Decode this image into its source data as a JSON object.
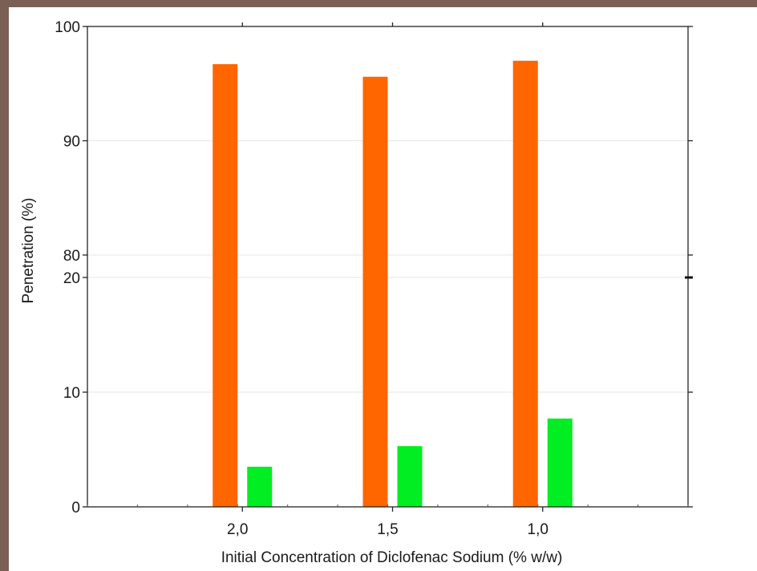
{
  "chart_data": {
    "type": "bar",
    "title": "",
    "xlabel": "Initial Concentration of Diclofenac Sodium (% w/w)",
    "ylabel": "Penetration (%)",
    "categories": [
      "2,0",
      "1,5",
      "1,0"
    ],
    "y_axis": {
      "broken": true,
      "lower_segment": {
        "range": [
          0,
          20
        ],
        "ticks": [
          "0",
          "10",
          "20"
        ]
      },
      "upper_segment": {
        "range": [
          80,
          100
        ],
        "ticks": [
          "80",
          "90",
          "100"
        ]
      }
    },
    "series": [
      {
        "values": [
          96.7,
          95.6,
          97.0
        ],
        "color": "#ff6600"
      },
      {
        "values": [
          3.5,
          5.3,
          7.7
        ],
        "color": "#00ee22"
      }
    ],
    "grid": true,
    "legend": "none"
  }
}
